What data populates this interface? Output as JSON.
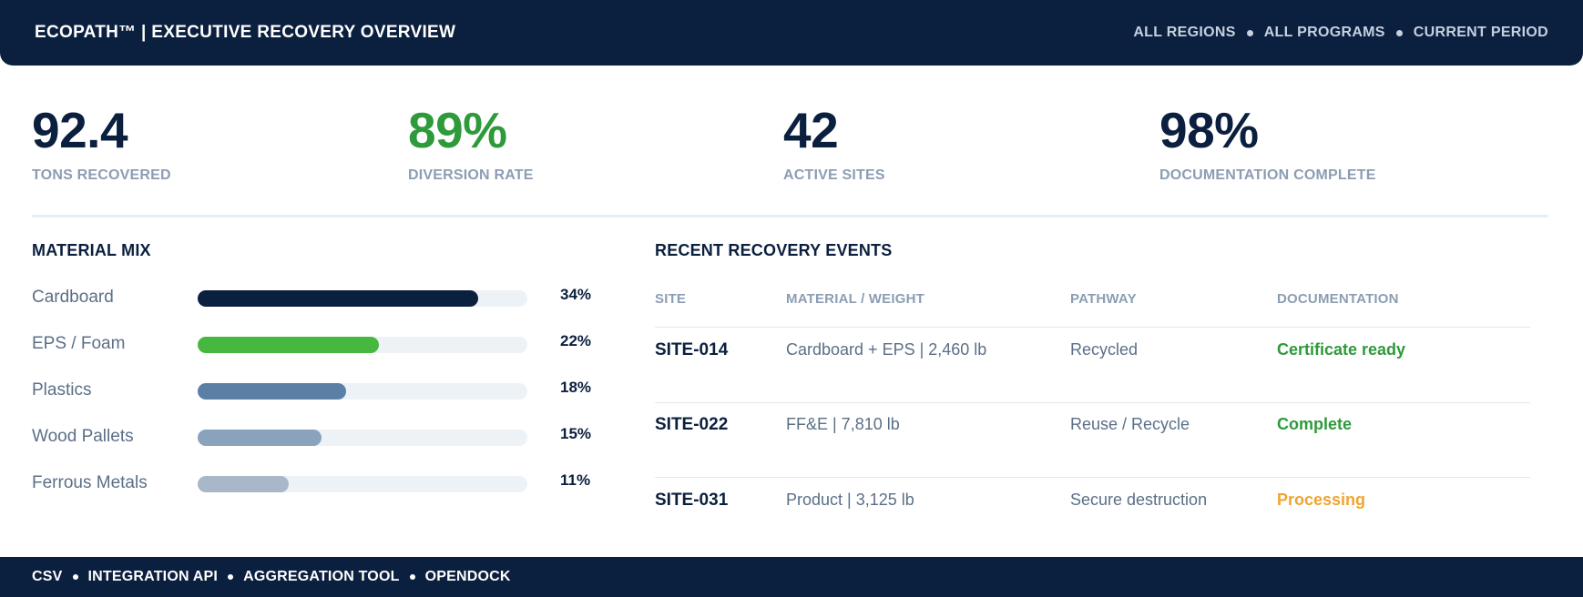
{
  "header": {
    "title": "ECOPATH™  |  EXECUTIVE RECOVERY OVERVIEW",
    "filters": [
      "ALL REGIONS",
      "ALL PROGRAMS",
      "CURRENT PERIOD"
    ]
  },
  "kpis": [
    {
      "value": "92.4",
      "label": "TONS RECOVERED",
      "color": "#0b1f3e"
    },
    {
      "value": "89%",
      "label": "DIVERSION RATE",
      "color": "#2e9a3a"
    },
    {
      "value": "42",
      "label": "ACTIVE SITES",
      "color": "#0b1f3e"
    },
    {
      "value": "98%",
      "label": "DOCUMENTATION COMPLETE",
      "color": "#0b1f3e"
    }
  ],
  "material_mix": {
    "title": "MATERIAL MIX",
    "items": [
      {
        "name": "Cardboard",
        "pct_label": "34%",
        "fill_fraction": 0.85,
        "color": "#0b1f3e"
      },
      {
        "name": "EPS / Foam",
        "pct_label": "22%",
        "fill_fraction": 0.55,
        "color": "#46b840"
      },
      {
        "name": "Plastics",
        "pct_label": "18%",
        "fill_fraction": 0.45,
        "color": "#5c7fa6"
      },
      {
        "name": "Wood Pallets",
        "pct_label": "15%",
        "fill_fraction": 0.375,
        "color": "#8ba2bd"
      },
      {
        "name": "Ferrous Metals",
        "pct_label": "11%",
        "fill_fraction": 0.275,
        "color": "#a8b8c8"
      }
    ]
  },
  "events": {
    "title": "RECENT RECOVERY EVENTS",
    "columns": [
      "SITE",
      "MATERIAL / WEIGHT",
      "PATHWAY",
      "DOCUMENTATION"
    ],
    "rows": [
      {
        "site": "SITE-014",
        "material": "Cardboard + EPS  |  2,460 lb",
        "pathway": "Recycled",
        "documentation": "Certificate ready",
        "doc_color": "#2e9a3a"
      },
      {
        "site": "SITE-022",
        "material": "FF&E  |  7,810 lb",
        "pathway": "Reuse / Recycle",
        "documentation": "Complete",
        "doc_color": "#2e9a3a"
      },
      {
        "site": "SITE-031",
        "material": "Product  |  3,125 lb",
        "pathway": "Secure destruction",
        "documentation": "Processing",
        "doc_color": "#f0a431"
      }
    ]
  },
  "footer": {
    "items": [
      "CSV",
      "INTEGRATION API",
      "AGGREGATION TOOL",
      "OPENDOCK"
    ]
  }
}
